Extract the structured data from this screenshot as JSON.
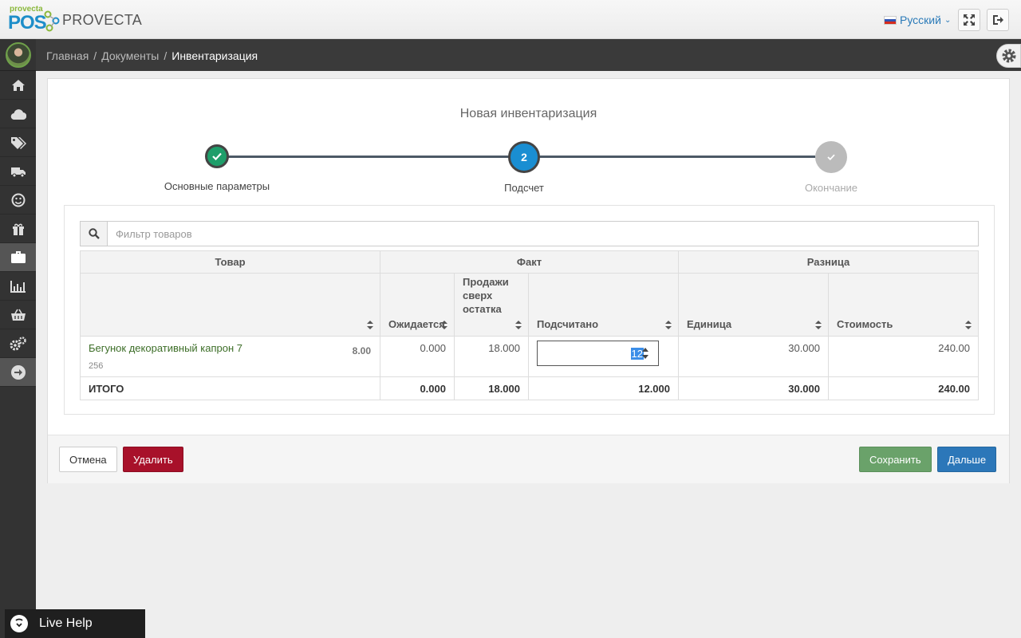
{
  "header": {
    "logo_small": "provecta",
    "logo_pos": "POS",
    "brand": "PROVECTA",
    "language": "Русский",
    "icons": [
      "fullscreen-icon",
      "logout-icon"
    ]
  },
  "sidebar": {
    "items": [
      {
        "icon": "home-icon"
      },
      {
        "icon": "cloud-icon"
      },
      {
        "icon": "tags-icon"
      },
      {
        "icon": "truck-icon"
      },
      {
        "icon": "smile-icon"
      },
      {
        "icon": "gift-icon"
      },
      {
        "icon": "briefcase-icon",
        "active": true
      },
      {
        "icon": "bar-chart-icon"
      },
      {
        "icon": "basket-icon"
      },
      {
        "icon": "cogs-icon"
      },
      {
        "icon": "arrow-right-icon"
      }
    ]
  },
  "breadcrumb": {
    "home": "Главная",
    "documents": "Документы",
    "current": "Инвентаризация",
    "separator": "/"
  },
  "page": {
    "title": "Новая инвентаризация"
  },
  "wizard": {
    "steps": [
      {
        "label": "Основные параметры",
        "state": "done",
        "color": "#1e9e6a"
      },
      {
        "label": "Подсчет",
        "number": "2",
        "state": "active",
        "color": "#1a8ed2"
      },
      {
        "label": "Окончание",
        "state": "pending",
        "color": "#bbbbbb"
      }
    ]
  },
  "filter": {
    "placeholder": "Фильтр товаров",
    "value": ""
  },
  "table": {
    "groups": [
      "Товар",
      "Факт",
      "Разница"
    ],
    "columns": {
      "expected": "Ожидается",
      "oversales": "Продажи сверх остатка",
      "counted": "Подсчитано",
      "unit": "Единица",
      "cost": "Стоимость"
    },
    "rows": [
      {
        "name": "Бегунок декоративный капрон 7",
        "code": "256",
        "price": "8.00",
        "expected": "0.000",
        "oversales": "18.000",
        "counted": "12",
        "unit": "30.000",
        "cost": "240.00"
      }
    ],
    "total": {
      "label": "ИТОГО",
      "expected": "0.000",
      "oversales": "18.000",
      "counted": "12.000",
      "unit": "30.000",
      "cost": "240.00"
    }
  },
  "buttons": {
    "cancel": "Отмена",
    "delete": "Удалить",
    "save": "Сохранить",
    "next": "Дальше"
  },
  "livehelp": {
    "label": "Live Help"
  }
}
